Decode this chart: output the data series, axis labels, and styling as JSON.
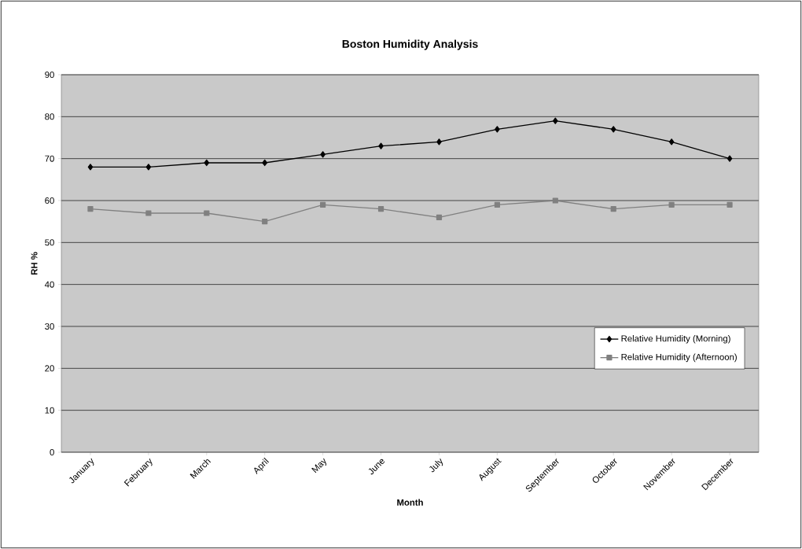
{
  "chart_data": {
    "type": "line",
    "title": "Boston Humidity Analysis",
    "xlabel": "Month",
    "ylabel": "RH %",
    "categories": [
      "January",
      "February",
      "March",
      "April",
      "May",
      "June",
      "July",
      "August",
      "September",
      "October",
      "November",
      "December"
    ],
    "series": [
      {
        "name": "Relative Humidity (Morning)",
        "color": "#000000",
        "marker": "diamond",
        "values": [
          68,
          68,
          69,
          69,
          71,
          73,
          74,
          77,
          79,
          77,
          74,
          70
        ]
      },
      {
        "name": "Relative Humidity (Afternoon)",
        "color": "#808080",
        "marker": "square",
        "values": [
          58,
          57,
          57,
          55,
          59,
          58,
          56,
          59,
          60,
          58,
          59,
          59
        ]
      }
    ],
    "ylim": [
      0,
      90
    ],
    "yticks": [
      0,
      10,
      20,
      30,
      40,
      50,
      60,
      70,
      80,
      90
    ],
    "grid": "y",
    "legend": "bottom right",
    "line_style": "solid"
  }
}
